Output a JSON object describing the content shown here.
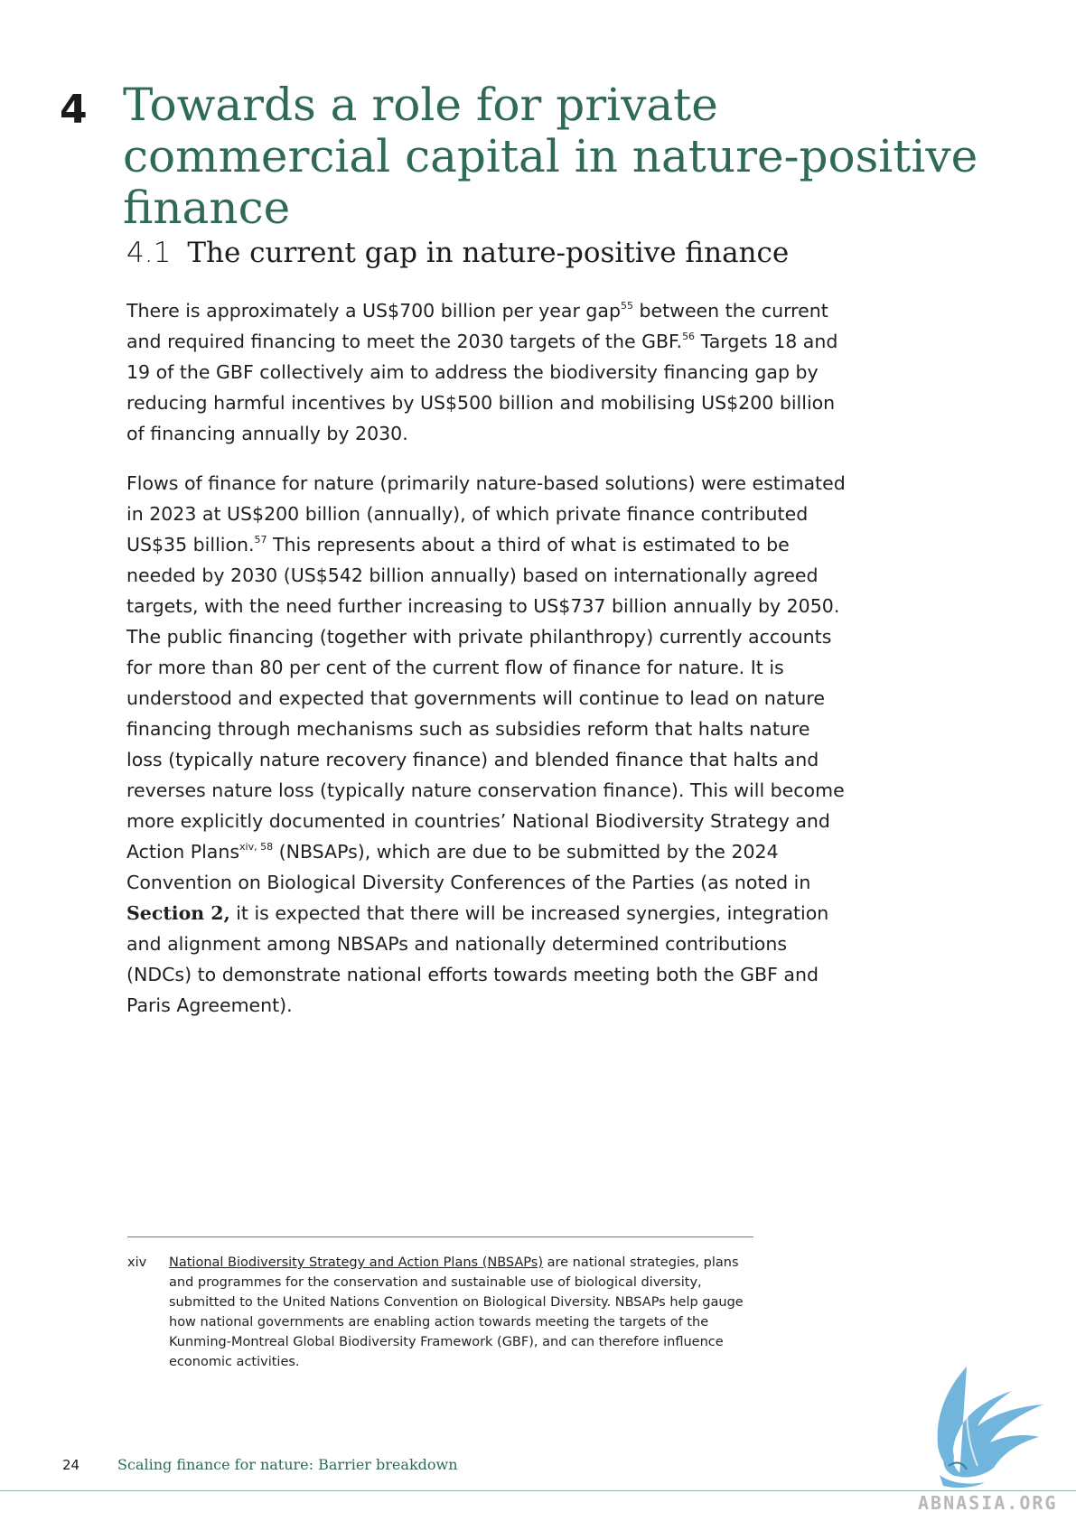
{
  "chapter": {
    "number": "4",
    "title": "Towards a role for private commercial capital in nature-positive finance"
  },
  "section": {
    "number": "4.1",
    "title": "The current gap in nature-positive finance"
  },
  "paragraph1": {
    "t1": "There is approximately a US$700 billion per year gap",
    "sup1": "55",
    "t2": " between the current and required financing to meet the 2030 targets of the GBF.",
    "sup2": "56",
    "t3": " Targets 18 and 19 of the GBF collectively aim to address the biodiversity financing gap by reducing harmful incentives by US$500 billion and mobilising US$200 billion of financing annually by 2030."
  },
  "paragraph2": {
    "t1": "Flows of finance for nature (primarily nature-based solutions) were estimated in 2023 at US$200 billion (annually), of which private finance contributed US$35 billion.",
    "sup1": "57",
    "t2": " This represents about a third of what is estimated to be needed by 2030 (US$542 billion annually) based on internationally agreed targets, with the need further increasing to US$737 billion annually by 2050. The public financing (together with private philanthropy) currently accounts for more than 80 per cent of the current flow of finance for nature. It is understood and expected that governments will continue to lead on nature financing through mechanisms such as subsidies reform that halts nature loss (typically nature recovery finance) and blended finance that halts and reverses nature loss (typically nature conservation finance). This will become more explicitly documented in countries’ National Biodiversity Strategy and Action Plans",
    "sup2": "xiv, 58",
    "t3": " (NBSAPs), which are due to be submitted by the 2024 Convention on Biological Diversity Conferences of the Parties (as noted in ",
    "section_ref": "Section 2,",
    "t4": " it is expected that there will be increased synergies, integration and alignment among NBSAPs and nationally determined contributions (NDCs) to demonstrate national efforts towards meeting both the GBF and Paris Agreement)."
  },
  "footnote": {
    "marker": "xiv",
    "link_text": "National Biodiversity Strategy and Action Plans (NBSAPs)",
    "text": " are national strategies, plans and programmes for the conservation and sustainable use of biological diversity, submitted to the United Nations Convention on Biological Diversity. NBSAPs help gauge how national governments are enabling action towards meeting the targets of the Kunming-Montreal Global Biodiversity Framework (GBF), and can therefore influence economic activities."
  },
  "footer": {
    "page_number": "24",
    "running_title": "Scaling finance for nature: Barrier breakdown"
  },
  "watermark": {
    "text": "ABNASIA.ORG",
    "icon": "griffin-logo-icon",
    "color": "#5aa9d6"
  }
}
